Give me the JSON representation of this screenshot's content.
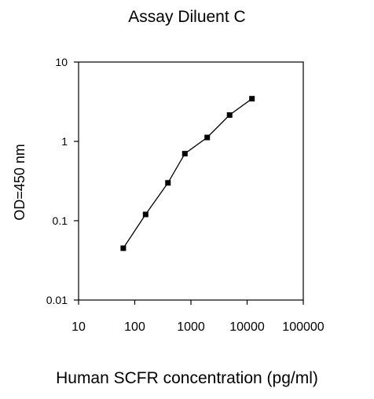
{
  "chart_data": {
    "type": "line",
    "title": "Assay Diluent C",
    "xlabel": "Human SCFR concentration (pg/ml)",
    "ylabel": "OD=450 nm",
    "x_scale": "log",
    "y_scale": "log",
    "xlim": [
      10,
      100000
    ],
    "ylim": [
      0.01,
      10
    ],
    "x_ticks": [
      "10",
      "100",
      "1000",
      "10000",
      "100000"
    ],
    "y_ticks": [
      "0.01",
      "0.1",
      "1",
      "10"
    ],
    "grid": false,
    "legend": "none",
    "series": [
      {
        "x": [
          62.5,
          156,
          390,
          780,
          1950,
          4880,
          12200
        ],
        "y": [
          0.045,
          0.12,
          0.3,
          0.7,
          1.12,
          2.15,
          3.45
        ]
      }
    ],
    "colors": {
      "line": "#000000",
      "marker": "#000000",
      "axis": "#000000"
    }
  }
}
